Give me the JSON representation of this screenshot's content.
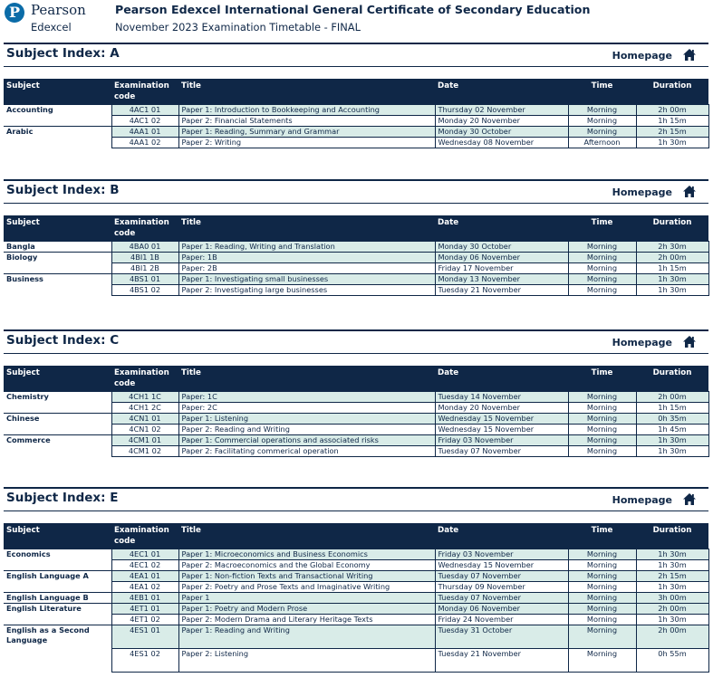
{
  "header": {
    "logo_word": "Pearson",
    "logo_letter": "P",
    "logo_sub": "Edexcel",
    "title": "Pearson Edexcel International General Certificate of Secondary Education",
    "subtitle": "November 2023 Examination Timetable - FINAL"
  },
  "columns": {
    "subject": "Subject",
    "code": "Examination code",
    "title": "Title",
    "date": "Date",
    "time": "Time",
    "duration": "Duration"
  },
  "homepage_label": "Homepage",
  "colors": {
    "navy": "#0f2747",
    "shade": "#d9ece8",
    "logo": "#0b6ca8"
  },
  "sections": [
    {
      "title": "Subject Index: A",
      "rows": [
        {
          "subject": "Accounting",
          "code": "4AC1 01",
          "title": "Paper 1: Introduction to Bookkeeping and Accounting",
          "date": "Thursday 02 November",
          "time": "Morning",
          "duration": "2h 00m"
        },
        {
          "subject": "",
          "code": "4AC1 02",
          "title": "Paper 2: Financial Statements",
          "date": "Monday 20 November",
          "time": "Morning",
          "duration": "1h 15m"
        },
        {
          "subject": "Arabic",
          "code": "4AA1 01",
          "title": "Paper 1: Reading, Summary and Grammar",
          "date": "Monday 30 October",
          "time": "Morning",
          "duration": "2h 15m"
        },
        {
          "subject": "",
          "code": "4AA1 02",
          "title": "Paper 2: Writing",
          "date": "Wednesday 08 November",
          "time": "Afternoon",
          "duration": "1h 30m"
        }
      ]
    },
    {
      "title": "Subject Index: B",
      "rows": [
        {
          "subject": "Bangla",
          "code": "4BA0 01",
          "title": "Paper 1: Reading, Writing and Translation",
          "date": "Monday 30 October",
          "time": "Morning",
          "duration": "2h 30m"
        },
        {
          "subject": "Biology",
          "code": "4BI1 1B",
          "title": "Paper: 1B",
          "date": "Monday 06 November",
          "time": "Morning",
          "duration": "2h 00m"
        },
        {
          "subject": "",
          "code": "4BI1 2B",
          "title": "Paper: 2B",
          "date": "Friday 17 November",
          "time": "Morning",
          "duration": "1h 15m"
        },
        {
          "subject": "Business",
          "code": "4BS1 01",
          "title": "Paper 1: Investigating small businesses",
          "date": "Monday 13 November",
          "time": "Morning",
          "duration": "1h 30m"
        },
        {
          "subject": "",
          "code": "4BS1 02",
          "title": "Paper 2: Investigating large businesses",
          "date": "Tuesday 21 November",
          "time": "Morning",
          "duration": "1h 30m"
        }
      ]
    },
    {
      "title": "Subject Index: C",
      "rows": [
        {
          "subject": "Chemistry",
          "code": "4CH1 1C",
          "title": "Paper: 1C",
          "date": "Tuesday 14 November",
          "time": "Morning",
          "duration": "2h 00m"
        },
        {
          "subject": "",
          "code": "4CH1 2C",
          "title": "Paper: 2C",
          "date": "Monday 20 November",
          "time": "Morning",
          "duration": "1h 15m"
        },
        {
          "subject": "Chinese",
          "code": "4CN1 01",
          "title": "Paper 1: Listening",
          "date": "Wednesday 15 November",
          "time": "Morning",
          "duration": "0h 35m"
        },
        {
          "subject": "",
          "code": "4CN1 02",
          "title": "Paper 2: Reading and Writing",
          "date": "Wednesday 15 November",
          "time": "Morning",
          "duration": "1h 45m"
        },
        {
          "subject": "Commerce",
          "code": "4CM1 01",
          "title": "Paper 1: Commercial operations and associated risks",
          "date": "Friday 03 November",
          "time": "Morning",
          "duration": "1h 30m"
        },
        {
          "subject": "",
          "code": "4CM1 02",
          "title": "Paper 2: Facilitating commerical operation",
          "date": "Tuesday 07 November",
          "time": "Morning",
          "duration": "1h 30m"
        }
      ]
    },
    {
      "title": "Subject Index: E",
      "rows": [
        {
          "subject": "Economics",
          "code": "4EC1 01",
          "title": "Paper 1: Microeconomics and Business Economics",
          "date": "Friday 03 November",
          "time": "Morning",
          "duration": "1h 30m"
        },
        {
          "subject": "",
          "code": "4EC1 02",
          "title": "Paper 2: Macroeconomics and the Global Economy",
          "date": "Wednesday 15 November",
          "time": "Morning",
          "duration": "1h 30m"
        },
        {
          "subject": "English Language A",
          "code": "4EA1 01",
          "title": "Paper 1: Non-fiction Texts and Transactional Writing",
          "date": "Tuesday 07 November",
          "time": "Morning",
          "duration": "2h 15m"
        },
        {
          "subject": "",
          "code": "4EA1 02",
          "title": "Paper 2: Poetry and Prose Texts and Imaginative Writing",
          "date": "Thursday 09 November",
          "time": "Morning",
          "duration": "1h 30m"
        },
        {
          "subject": "English Language B",
          "code": "4EB1 01",
          "title": "Paper 1",
          "date": "Tuesday 07 November",
          "time": "Morning",
          "duration": "3h 00m"
        },
        {
          "subject": "English Literature",
          "code": "4ET1 01",
          "title": "Paper 1: Poetry and Modern Prose",
          "date": "Monday 06 November",
          "time": "Morning",
          "duration": "2h 00m"
        },
        {
          "subject": "",
          "code": "4ET1 02",
          "title": "Paper 2: Modern Drama and Literary Heritage Texts",
          "date": "Friday 24 November",
          "time": "Morning",
          "duration": "1h 30m"
        },
        {
          "subject": "English as a Second Language",
          "code": "4ES1 01",
          "title": "Paper 1: Reading and Writing",
          "date": "Tuesday 31 October",
          "time": "Morning",
          "duration": "2h 00m"
        },
        {
          "subject": "",
          "code": "4ES1 02",
          "title": "Paper 2: Listening",
          "date": "Tuesday 21 November",
          "time": "Morning",
          "duration": "0h 55m"
        }
      ]
    }
  ]
}
